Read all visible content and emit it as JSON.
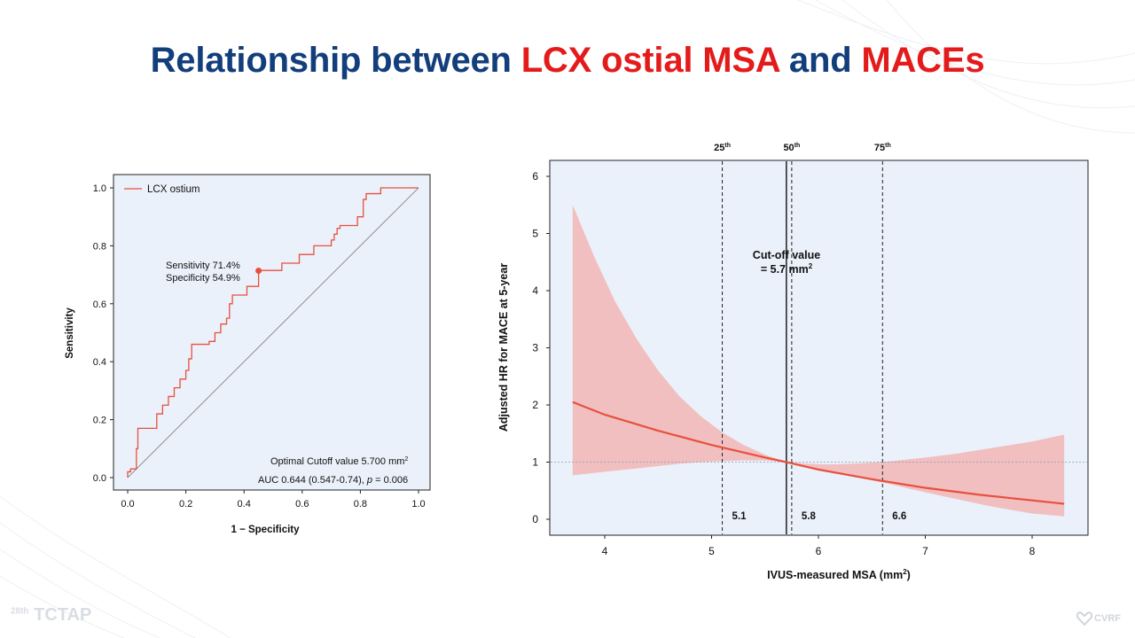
{
  "title": {
    "part1": "Relationship between ",
    "highlight1": "LCX ostial MSA",
    "part2": " and ",
    "highlight2": "MACEs"
  },
  "colors": {
    "title_blue": "#123e7c",
    "title_red": "#e41b1b",
    "series": "#e8503e",
    "band": "#f2b9b9",
    "plot_bg": "#eaf1fa"
  },
  "footer": {
    "event_sup": "28th",
    "event_name": "TCTAP",
    "logo_text": "CVRF"
  },
  "chart_data": [
    {
      "type": "line",
      "chart_name": "ROC curve",
      "xlabel": "1 − Specificity",
      "ylabel": "Sensitivity",
      "xlim": [
        0,
        1
      ],
      "ylim": [
        0,
        1
      ],
      "xticks": [
        "0.0",
        "0.2",
        "0.4",
        "0.6",
        "0.8",
        "1.0"
      ],
      "yticks": [
        "0.0",
        "0.2",
        "0.4",
        "0.6",
        "0.8",
        "1.0"
      ],
      "legend": {
        "label": "LCX ostium",
        "position": "top-left"
      },
      "series": [
        {
          "name": "LCX ostium",
          "points": [
            [
              0,
              0
            ],
            [
              0,
              0.02
            ],
            [
              0.01,
              0.02
            ],
            [
              0.01,
              0.03
            ],
            [
              0.03,
              0.03
            ],
            [
              0.03,
              0.1
            ],
            [
              0.035,
              0.1
            ],
            [
              0.035,
              0.17
            ],
            [
              0.1,
              0.17
            ],
            [
              0.1,
              0.22
            ],
            [
              0.12,
              0.22
            ],
            [
              0.12,
              0.25
            ],
            [
              0.14,
              0.25
            ],
            [
              0.14,
              0.28
            ],
            [
              0.16,
              0.28
            ],
            [
              0.16,
              0.31
            ],
            [
              0.18,
              0.31
            ],
            [
              0.18,
              0.34
            ],
            [
              0.2,
              0.34
            ],
            [
              0.2,
              0.37
            ],
            [
              0.21,
              0.37
            ],
            [
              0.21,
              0.41
            ],
            [
              0.22,
              0.41
            ],
            [
              0.22,
              0.46
            ],
            [
              0.28,
              0.46
            ],
            [
              0.28,
              0.47
            ],
            [
              0.3,
              0.47
            ],
            [
              0.3,
              0.5
            ],
            [
              0.32,
              0.5
            ],
            [
              0.32,
              0.53
            ],
            [
              0.34,
              0.53
            ],
            [
              0.34,
              0.55
            ],
            [
              0.35,
              0.55
            ],
            [
              0.35,
              0.6
            ],
            [
              0.36,
              0.6
            ],
            [
              0.36,
              0.63
            ],
            [
              0.41,
              0.63
            ],
            [
              0.41,
              0.66
            ],
            [
              0.45,
              0.66
            ],
            [
              0.45,
              0.715
            ],
            [
              0.53,
              0.715
            ],
            [
              0.53,
              0.74
            ],
            [
              0.59,
              0.74
            ],
            [
              0.59,
              0.77
            ],
            [
              0.64,
              0.77
            ],
            [
              0.64,
              0.8
            ],
            [
              0.7,
              0.8
            ],
            [
              0.7,
              0.82
            ],
            [
              0.71,
              0.82
            ],
            [
              0.71,
              0.84
            ],
            [
              0.72,
              0.84
            ],
            [
              0.72,
              0.86
            ],
            [
              0.73,
              0.86
            ],
            [
              0.73,
              0.87
            ],
            [
              0.79,
              0.87
            ],
            [
              0.79,
              0.9
            ],
            [
              0.81,
              0.9
            ],
            [
              0.81,
              0.96
            ],
            [
              0.82,
              0.96
            ],
            [
              0.82,
              0.98
            ],
            [
              0.87,
              0.98
            ],
            [
              0.87,
              1.0
            ],
            [
              1.0,
              1.0
            ]
          ]
        }
      ],
      "optimal_point": {
        "x": 0.45,
        "y": 0.714
      },
      "annotations": {
        "sensitivity": "Sensitivity 71.4%",
        "specificity": "Specificity 54.9%",
        "cutoff": "Optimal Cutoff value 5.700 mm",
        "cutoff_sup": "2",
        "auc_prefix": "AUC 0.644 (0.547-0.74), ",
        "auc_p": "p",
        "auc_suffix": " = 0.006"
      },
      "grid": false
    },
    {
      "type": "line",
      "chart_name": "Adjusted HR spline",
      "xlabel": "IVUS-measured MSA (mm",
      "xlabel_sup": "2",
      "xlabel_end": ")",
      "ylabel": "Adjusted HR for MACE at 5-year",
      "xlim": [
        3.5,
        8.5
      ],
      "ylim": [
        -0.3,
        6.3
      ],
      "xticks": [
        4,
        5,
        6,
        7,
        8
      ],
      "yticks": [
        0,
        1,
        2,
        3,
        4,
        5,
        6
      ],
      "series": [
        {
          "name": "HR",
          "x": [
            3.7,
            4.0,
            4.5,
            5.0,
            5.5,
            5.7,
            6.0,
            6.5,
            7.0,
            7.5,
            8.0,
            8.3
          ],
          "y": [
            2.05,
            1.83,
            1.55,
            1.3,
            1.08,
            1.0,
            0.87,
            0.7,
            0.55,
            0.43,
            0.33,
            0.27
          ]
        }
      ],
      "ci_band": {
        "x": [
          3.7,
          3.9,
          4.1,
          4.3,
          4.5,
          4.7,
          4.9,
          5.1,
          5.3,
          5.5,
          5.7,
          5.9,
          6.1,
          6.3,
          6.5,
          6.7,
          7.0,
          7.3,
          7.6,
          8.0,
          8.3
        ],
        "upper": [
          5.5,
          4.6,
          3.8,
          3.15,
          2.6,
          2.15,
          1.8,
          1.52,
          1.3,
          1.13,
          1.0,
          0.97,
          0.96,
          0.97,
          0.99,
          1.02,
          1.08,
          1.15,
          1.24,
          1.36,
          1.48
        ],
        "lower": [
          0.77,
          0.81,
          0.85,
          0.89,
          0.93,
          0.97,
          1.0,
          1.02,
          1.03,
          1.03,
          1.0,
          0.92,
          0.84,
          0.76,
          0.68,
          0.6,
          0.47,
          0.35,
          0.23,
          0.1,
          0.05
        ]
      },
      "reference_line_y": 1,
      "cutoff_line_x": 5.7,
      "cutoff_label": "Cut-off value",
      "cutoff_value": "= 5.7 mm",
      "cutoff_value_sup": "2",
      "percentiles": [
        {
          "x": 5.1,
          "label": "25",
          "sup": "th",
          "value": "5.1"
        },
        {
          "x": 5.75,
          "label": "50",
          "sup": "th",
          "value": "5.8"
        },
        {
          "x": 6.6,
          "label": "75",
          "sup": "th",
          "value": "6.6"
        }
      ],
      "grid": false
    }
  ]
}
